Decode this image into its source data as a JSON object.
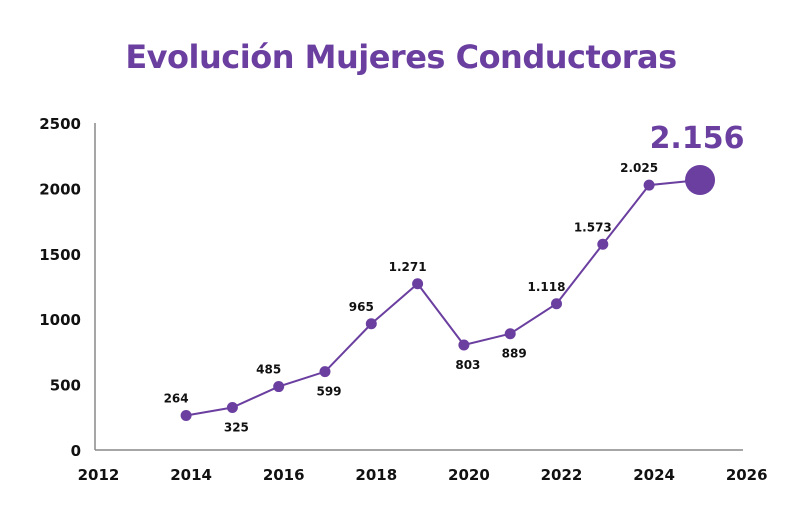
{
  "chart_data": {
    "type": "line",
    "title": "Evolución Mujeres Conductoras",
    "xlabel": "",
    "ylabel": "",
    "xlim": [
      2012,
      2026
    ],
    "ylim": [
      0,
      2500
    ],
    "x_ticks": [
      "2012",
      "2014",
      "2016",
      "2018",
      "2020",
      "2022",
      "2024",
      "2026"
    ],
    "y_ticks": [
      "0",
      "500",
      "1000",
      "1500",
      "2000",
      "2500"
    ],
    "grid": false,
    "color": "#6b3fa0",
    "points": [
      {
        "x": 2014,
        "y": 264,
        "label": "264",
        "pos": "above"
      },
      {
        "x": 2015,
        "y": 325,
        "label": "325",
        "pos": "below"
      },
      {
        "x": 2016,
        "y": 485,
        "label": "485",
        "pos": "above"
      },
      {
        "x": 2017,
        "y": 599,
        "label": "599",
        "pos": "below"
      },
      {
        "x": 2018,
        "y": 965,
        "label": "965",
        "pos": "above"
      },
      {
        "x": 2019,
        "y": 1271,
        "label": "1.271",
        "pos": "above"
      },
      {
        "x": 2020,
        "y": 803,
        "label": "803",
        "pos": "below"
      },
      {
        "x": 2021,
        "y": 889,
        "label": "889",
        "pos": "below"
      },
      {
        "x": 2022,
        "y": 1118,
        "label": "1.118",
        "pos": "above"
      },
      {
        "x": 2023,
        "y": 1573,
        "label": "1.573",
        "pos": "above"
      },
      {
        "x": 2024,
        "y": 2025,
        "label": "2.025",
        "pos": "above"
      }
    ],
    "highlight": {
      "x": 2025.1,
      "y": 2064,
      "label": "2.156"
    }
  }
}
